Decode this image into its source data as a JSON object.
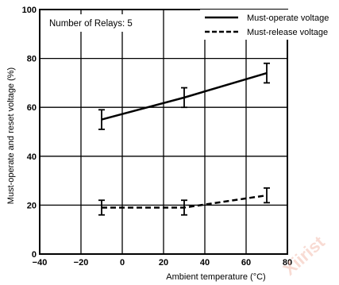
{
  "chart_data": {
    "type": "line",
    "title": "",
    "xlabel": "Ambient temperature (°C)",
    "ylabel": "Must-operate and reset voltage (%)",
    "xlim": [
      -40,
      80
    ],
    "ylim": [
      0,
      100
    ],
    "x_ticks": [
      "−40",
      "−20",
      "0",
      "20",
      "40",
      "60",
      "80"
    ],
    "y_ticks": [
      "0",
      "20",
      "40",
      "60",
      "80",
      "100"
    ],
    "grid": true,
    "annotation": "Number of Relays: 5",
    "legend_position": "top-right",
    "series": [
      {
        "name": "Must-operate voltage",
        "style": "solid",
        "x": [
          -10,
          30,
          70
        ],
        "y": [
          55,
          64,
          74
        ],
        "err_low": [
          51,
          60,
          70
        ],
        "err_high": [
          59,
          68,
          78
        ]
      },
      {
        "name": "Must-release voltage",
        "style": "dashed",
        "x": [
          -10,
          30,
          70
        ],
        "y": [
          19,
          19,
          24
        ],
        "err_low": [
          16,
          16,
          21
        ],
        "err_high": [
          22,
          22,
          27
        ]
      }
    ]
  },
  "watermark": "Xiirist"
}
